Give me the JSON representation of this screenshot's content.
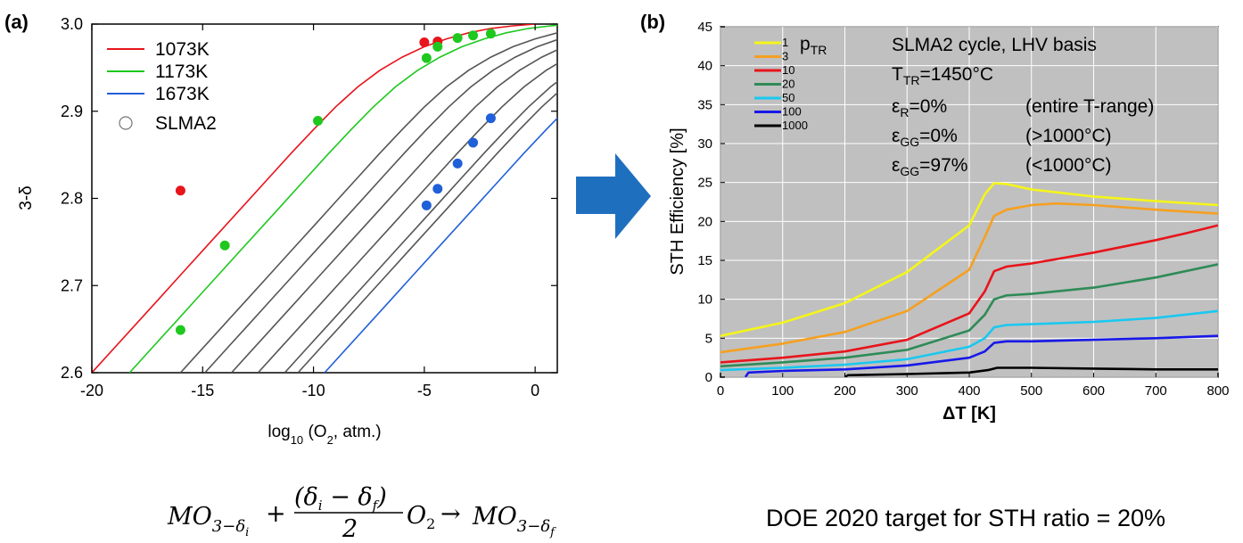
{
  "panel_a_label": "(a)",
  "panel_b_label": "(b)",
  "equation": {
    "MO": "MO",
    "sub_start": "3−δ",
    "sub_start_i": "i",
    "plus": "+",
    "numerator": "(δ",
    "numerator_i": "i",
    "numerator_minus": " − δ",
    "numerator_f": "f",
    "numerator_close": ")",
    "denominator": "2",
    "O": "O",
    "O_sub": "2",
    "arrow": "→",
    "sub_end": "3−δ",
    "sub_end_f": "f"
  },
  "caption_b": "DOE 2020 target for STH ratio = 20%",
  "arrow_color": "#1f6fbf",
  "chart_data": [
    {
      "type": "line",
      "panel": "(a)",
      "xlabel": "log",
      "xlabel_sub": "10",
      "xlabel_rest": " (O",
      "xlabel_sub2": "2",
      "xlabel_end": ", atm.)",
      "ylabel": "3-δ",
      "xlim": [
        -20,
        1
      ],
      "ylim": [
        2.6,
        3.0
      ],
      "x_ticks": [
        -20,
        -15,
        -10,
        -5,
        0
      ],
      "x_tick_labels": [
        "-20",
        "-15",
        "-10",
        "-5",
        "0"
      ],
      "y_ticks": [
        2.6,
        2.7,
        2.8,
        2.9,
        3.0
      ],
      "y_tick_labels": [
        "2.6",
        "2.7",
        "2.8",
        "2.9",
        "3.0"
      ],
      "legend_position": "top-left",
      "legend": [
        {
          "name": "1073K",
          "color": "#e8141b",
          "kind": "line"
        },
        {
          "name": "1173K",
          "color": "#1ec81e",
          "kind": "line"
        },
        {
          "name": "1673K",
          "color": "#2060d8",
          "kind": "line"
        },
        {
          "name": "SLMA2",
          "color": "#ffffff",
          "kind": "marker"
        }
      ],
      "curve_shift_x": [
        -20.0,
        -18.3,
        -16.0,
        -14.9,
        -13.7,
        -12.5,
        -11.3,
        -10.7,
        -9.5
      ],
      "curve_colors": [
        "#e8141b",
        "#1ec81e",
        "#555555",
        "#555555",
        "#555555",
        "#555555",
        "#555555",
        "#555555",
        "#2060d8"
      ],
      "curve_template": {
        "offset": [
          0,
          1,
          2,
          3,
          4,
          5,
          6,
          7,
          8,
          9,
          10,
          11,
          12,
          13,
          14,
          15,
          16,
          17,
          18,
          19,
          20
        ],
        "y": [
          2.6,
          2.628,
          2.656,
          2.684,
          2.712,
          2.74,
          2.768,
          2.796,
          2.824,
          2.852,
          2.879,
          2.905,
          2.928,
          2.947,
          2.962,
          2.974,
          2.983,
          2.99,
          2.995,
          2.998,
          3.0
        ]
      },
      "series": [
        {
          "name": "1073K",
          "color": "#e8141b",
          "x": [
            -16.0,
            -5.0,
            -4.4
          ],
          "y": [
            2.809,
            2.979,
            2.98
          ]
        },
        {
          "name": "1173K",
          "color": "#1ec81e",
          "x": [
            -16.0,
            -14.0,
            -9.8,
            -4.9,
            -4.4,
            -3.5,
            -2.8,
            -2.0
          ],
          "y": [
            2.649,
            2.746,
            2.889,
            2.961,
            2.974,
            2.984,
            2.987,
            2.989
          ]
        },
        {
          "name": "1673K",
          "color": "#2060d8",
          "x": [
            -4.9,
            -4.4,
            -3.5,
            -2.8,
            -2.0
          ],
          "y": [
            2.792,
            2.811,
            2.84,
            2.864,
            2.892
          ]
        }
      ]
    },
    {
      "type": "line",
      "panel": "(b)",
      "xlabel": "ΔT [K]",
      "ylabel": "STH Efficiency [%]",
      "xlim": [
        0,
        800
      ],
      "ylim": [
        0,
        45
      ],
      "x_ticks": [
        0,
        100,
        200,
        300,
        400,
        500,
        600,
        700,
        800
      ],
      "x_tick_labels": [
        "0",
        "100",
        "200",
        "300",
        "400",
        "500",
        "600",
        "700",
        "800"
      ],
      "y_ticks": [
        0,
        5,
        10,
        15,
        20,
        25,
        30,
        35,
        40,
        45
      ],
      "y_tick_labels": [
        "0",
        "5",
        "10",
        "15",
        "20",
        "25",
        "30",
        "35",
        "40",
        "45"
      ],
      "grid": true,
      "background": "#c0c0c0",
      "legend_position": "top-left",
      "legend_title": "p",
      "legend_title_sub": "TR",
      "series": [
        {
          "name": "1",
          "color": "#f5f51a",
          "x": [
            0,
            100,
            200,
            300,
            400,
            425,
            440,
            460,
            500,
            600,
            700,
            800
          ],
          "y": [
            5.3,
            7.0,
            9.5,
            13.5,
            19.5,
            23.5,
            24.9,
            24.8,
            24.1,
            23.2,
            22.6,
            22.1
          ]
        },
        {
          "name": "3",
          "color": "#f5a020",
          "x": [
            0,
            100,
            200,
            300,
            400,
            425,
            440,
            460,
            500,
            540,
            600,
            700,
            800
          ],
          "y": [
            3.2,
            4.3,
            5.8,
            8.5,
            13.8,
            18.0,
            20.7,
            21.5,
            22.1,
            22.3,
            22.1,
            21.5,
            21.0
          ]
        },
        {
          "name": "10",
          "color": "#e8141b",
          "x": [
            0,
            100,
            200,
            300,
            400,
            425,
            440,
            460,
            500,
            600,
            700,
            750,
            800
          ],
          "y": [
            1.9,
            2.5,
            3.3,
            4.8,
            8.2,
            11.0,
            13.6,
            14.2,
            14.6,
            16.0,
            17.6,
            18.5,
            19.5
          ]
        },
        {
          "name": "20",
          "color": "#2e8b57",
          "x": [
            0,
            100,
            200,
            300,
            400,
            425,
            440,
            460,
            500,
            600,
            700,
            800
          ],
          "y": [
            1.4,
            1.9,
            2.5,
            3.5,
            6.0,
            8.0,
            10.0,
            10.5,
            10.7,
            11.5,
            12.8,
            14.5
          ]
        },
        {
          "name": "50",
          "color": "#19c8f0",
          "x": [
            0,
            100,
            200,
            300,
            400,
            425,
            440,
            460,
            500,
            600,
            700,
            800
          ],
          "y": [
            0.9,
            1.2,
            1.6,
            2.3,
            3.9,
            5.0,
            6.4,
            6.7,
            6.8,
            7.1,
            7.6,
            8.5
          ]
        },
        {
          "name": "100",
          "color": "#1818e8",
          "x": [
            40,
            45,
            100,
            200,
            300,
            400,
            425,
            440,
            460,
            500,
            600,
            700,
            800
          ],
          "y": [
            0.0,
            0.6,
            0.8,
            1.0,
            1.5,
            2.5,
            3.3,
            4.4,
            4.6,
            4.6,
            4.8,
            5.0,
            5.3
          ]
        },
        {
          "name": "1000",
          "color": "#000000",
          "x": [
            200,
            205,
            300,
            400,
            430,
            445,
            460,
            500,
            600,
            700,
            800
          ],
          "y": [
            0.0,
            0.25,
            0.4,
            0.6,
            0.9,
            1.2,
            1.2,
            1.2,
            1.1,
            1.0,
            1.0
          ]
        }
      ],
      "annotations": {
        "title": "SLMA2 cycle, LHV basis",
        "t_tr": "T",
        "t_tr_sub": "TR",
        "t_tr_val": "=1450°C",
        "eps_r": "ε",
        "eps_r_sub": "R",
        "eps_r_val": "=0%",
        "eps_r_note": "(entire T-range)",
        "eps_gg1": "ε",
        "eps_gg1_sub": "GG",
        "eps_gg1_val": "=0%",
        "eps_gg1_note": "(>1000°C)",
        "eps_gg2": "ε",
        "eps_gg2_sub": "GG",
        "eps_gg2_val": "=97%",
        "eps_gg2_note": "(<1000°C)"
      }
    }
  ]
}
